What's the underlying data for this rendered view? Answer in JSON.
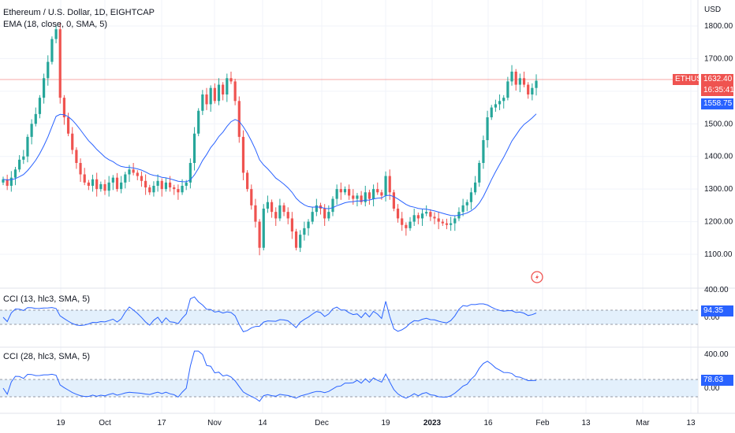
{
  "chart": {
    "title": "Ethereum / U.S. Dollar, 1D, EIGHTCAP",
    "indicator": "EMA (18, close, 0, SMA, 5)",
    "currency": "USD",
    "symbol_tag": "ETHUSD",
    "last_price": "1632.40",
    "countdown": "16:35:41",
    "ema_value": "1558.75",
    "price_ticks": [
      "1800.00",
      "1700.00",
      "1600.00",
      "1500.00",
      "1400.00",
      "1300.00",
      "1200.00",
      "1100.00"
    ],
    "cci1_ticks": [
      "400.00",
      "0.00"
    ],
    "cci2_ticks": [
      "400.00",
      "0.00"
    ],
    "x_labels": [
      "19",
      "Oct",
      "17",
      "Nov",
      "14",
      "Dec",
      "19",
      "2023",
      "16",
      "Feb",
      "13",
      "Mar",
      "13"
    ],
    "colors": {
      "up": "#26a69a",
      "down": "#ef5350",
      "ema": "#2962ff",
      "cci": "#2962ff",
      "band": "#e3f0fc"
    }
  },
  "panels": {
    "cci1": {
      "label": "CCI (13, hlc3, SMA, 5)",
      "value": "94.35"
    },
    "cci2": {
      "label": "CCI (28, hlc3, SMA, 5)",
      "value": "78.63"
    }
  },
  "icons": {
    "flash": "flash-icon"
  }
}
